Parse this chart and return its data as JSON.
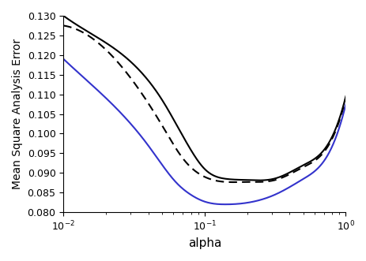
{
  "title": "",
  "xlabel": "alpha",
  "ylabel": "Mean Square Analysis Error",
  "xlim_log": [
    -2,
    0
  ],
  "ylim": [
    0.08,
    0.13
  ],
  "yticks": [
    0.08,
    0.085,
    0.09,
    0.095,
    0.1,
    0.105,
    0.11,
    0.115,
    0.12,
    0.125,
    0.13
  ],
  "line_tla_color": "#000000",
  "line_bla_color": "#3333cc",
  "line_dot_color": "#000000",
  "background_color": "#ffffff",
  "figsize": [
    4.64,
    3.31
  ],
  "dpi": 100,
  "tla_points_x": [
    -2.0,
    -1.5,
    -1.3,
    -1.1,
    -1.0,
    -0.85,
    -0.7,
    -0.5,
    -0.3,
    -0.1,
    0.0
  ],
  "tla_points_y": [
    0.13,
    0.1175,
    0.1085,
    0.096,
    0.091,
    0.0885,
    0.0882,
    0.0886,
    0.092,
    0.099,
    0.1095
  ],
  "bla_points_x": [
    -2.0,
    -1.6,
    -1.4,
    -1.3,
    -1.2,
    -1.1,
    -1.0,
    -0.85,
    -0.7,
    -0.5,
    -0.3,
    -0.1,
    0.0
  ],
  "bla_points_y": [
    0.119,
    0.1055,
    0.097,
    0.092,
    0.0875,
    0.0845,
    0.0827,
    0.082,
    0.0824,
    0.0845,
    0.0885,
    0.0965,
    0.1075
  ],
  "dot_points_x": [
    -2.0,
    -1.5,
    -1.3,
    -1.15,
    -1.0,
    -0.85,
    -0.7,
    -0.5,
    -0.3,
    -0.1,
    0.0
  ],
  "dot_points_y": [
    0.1275,
    0.113,
    0.102,
    0.0935,
    0.089,
    0.0877,
    0.0877,
    0.0882,
    0.0915,
    0.0985,
    0.109
  ]
}
